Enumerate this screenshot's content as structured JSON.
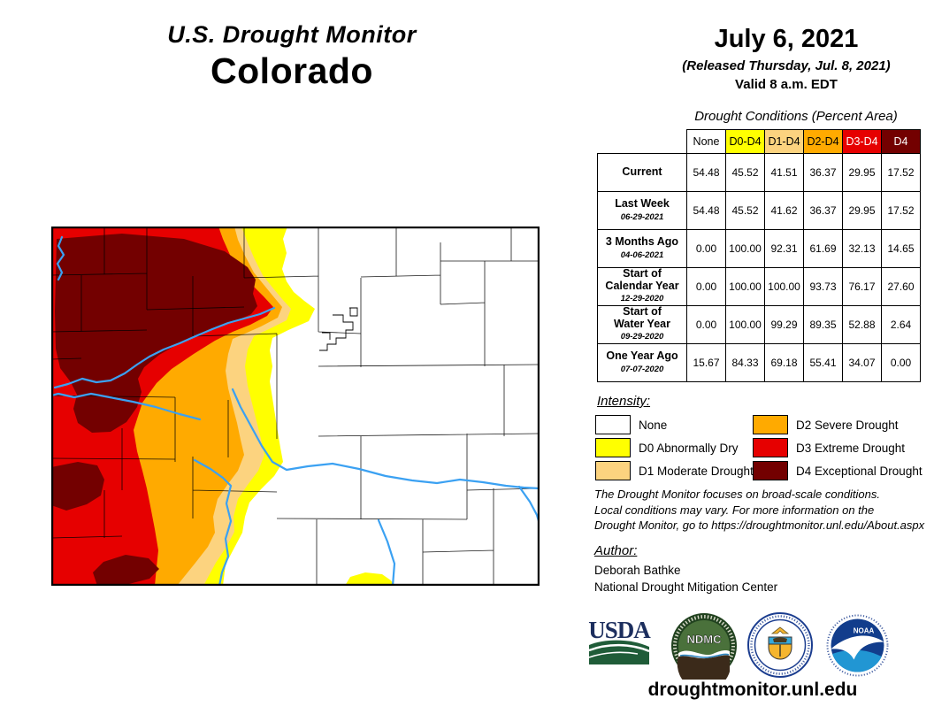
{
  "page": {
    "title_line1": "U.S. Drought Monitor",
    "title_line2": "Colorado"
  },
  "date_block": {
    "date": "July 6, 2021",
    "released": "(Released Thursday, Jul. 8, 2021)",
    "valid": "Valid 8 a.m. EDT"
  },
  "table": {
    "title": "Drought Conditions (Percent Area)",
    "columns": [
      {
        "label": "None",
        "code": "none"
      },
      {
        "label": "D0-D4",
        "code": "d0"
      },
      {
        "label": "D1-D4",
        "code": "d1"
      },
      {
        "label": "D2-D4",
        "code": "d2"
      },
      {
        "label": "D3-D4",
        "code": "d3"
      },
      {
        "label": "D4",
        "code": "d4"
      }
    ],
    "rows": [
      {
        "label_lines": [
          "Current"
        ],
        "sublabel": "",
        "values": [
          "54.48",
          "45.52",
          "41.51",
          "36.37",
          "29.95",
          "17.52"
        ]
      },
      {
        "label_lines": [
          "Last Week"
        ],
        "sublabel": "06-29-2021",
        "values": [
          "54.48",
          "45.52",
          "41.62",
          "36.37",
          "29.95",
          "17.52"
        ]
      },
      {
        "label_lines": [
          "3 Months Ago"
        ],
        "sublabel": "04-06-2021",
        "values": [
          "0.00",
          "100.00",
          "92.31",
          "61.69",
          "32.13",
          "14.65"
        ]
      },
      {
        "label_lines": [
          "Start of",
          "Calendar Year"
        ],
        "sublabel": "12-29-2020",
        "values": [
          "0.00",
          "100.00",
          "100.00",
          "93.73",
          "76.17",
          "27.60"
        ]
      },
      {
        "label_lines": [
          "Start of",
          "Water Year"
        ],
        "sublabel": "09-29-2020",
        "values": [
          "0.00",
          "100.00",
          "99.29",
          "89.35",
          "52.88",
          "2.64"
        ]
      },
      {
        "label_lines": [
          "One Year Ago"
        ],
        "sublabel": "07-07-2020",
        "values": [
          "15.67",
          "84.33",
          "69.18",
          "55.41",
          "34.07",
          "0.00"
        ]
      }
    ]
  },
  "legend": {
    "title": "Intensity:",
    "items": [
      {
        "code": "none",
        "label": "None"
      },
      {
        "code": "d0",
        "label": "D0 Abnormally Dry"
      },
      {
        "code": "d1",
        "label": "D1 Moderate Drought"
      },
      {
        "code": "d2",
        "label": "D2 Severe Drought"
      },
      {
        "code": "d3",
        "label": "D3 Extreme Drought"
      },
      {
        "code": "d4",
        "label": "D4 Exceptional Drought"
      }
    ]
  },
  "colors": {
    "none": "#FFFFFF",
    "d0": "#FFFF00",
    "d1": "#FCD37F",
    "d2": "#FFAA00",
    "d3": "#E60000",
    "d4": "#730000",
    "river": "#3BA1F2",
    "county_line": "#000000"
  },
  "disclaimer": {
    "lines": [
      "The Drought Monitor focuses on broad-scale conditions.",
      "Local conditions may vary. For more information on the",
      "Drought Monitor, go to https://droughtmonitor.unl.edu/About.aspx"
    ]
  },
  "author": {
    "title": "Author:",
    "name": "Deborah Bathke",
    "org": "National Drought Mitigation Center"
  },
  "footer": {
    "url": "droughtmonitor.unl.edu"
  },
  "logos": {
    "usda": "USDA",
    "ndmc": "NDMC",
    "noaa": "NOAA"
  }
}
